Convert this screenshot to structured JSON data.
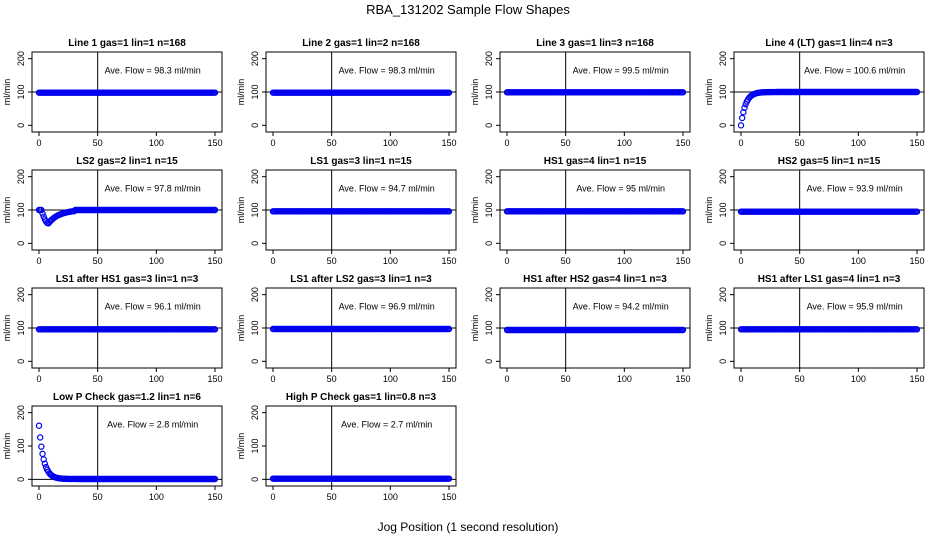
{
  "title": "RBA_131202  Sample Flow Shapes",
  "xlabel": "Jog Position (1 second resolution)",
  "colors": {
    "points": "#0000ee",
    "axes": "#000000"
  },
  "chart_data": [
    {
      "type": "scatter",
      "title": "Line 1 gas=1 lin=1 n=168",
      "ylabel": "ml/min",
      "annotation": "Ave. Flow = 98.3  ml/min",
      "xlim": [
        0,
        150
      ],
      "ylim": [
        -20,
        220
      ],
      "xticks": [
        0,
        50,
        100,
        150
      ],
      "yticks": [
        0,
        100,
        200
      ],
      "vline": 50,
      "hline": 100,
      "shape": "flat",
      "flat_level": 98,
      "n_points": 151
    },
    {
      "type": "scatter",
      "title": "Line 2 gas=1 lin=2 n=168",
      "ylabel": "ml/min",
      "annotation": "Ave. Flow = 98.3  ml/min",
      "xlim": [
        0,
        150
      ],
      "ylim": [
        -20,
        220
      ],
      "xticks": [
        0,
        50,
        100,
        150
      ],
      "yticks": [
        0,
        100,
        200
      ],
      "vline": 50,
      "hline": 100,
      "shape": "flat",
      "flat_level": 98,
      "n_points": 151
    },
    {
      "type": "scatter",
      "title": "Line 3 gas=1 lin=3 n=168",
      "ylabel": "ml/min",
      "annotation": "Ave. Flow = 99.5  ml/min",
      "xlim": [
        0,
        150
      ],
      "ylim": [
        -20,
        220
      ],
      "xticks": [
        0,
        50,
        100,
        150
      ],
      "yticks": [
        0,
        100,
        200
      ],
      "vline": 50,
      "hline": 100,
      "shape": "flat",
      "flat_level": 99,
      "n_points": 151
    },
    {
      "type": "scatter",
      "title": "Line 4 (LT) gas=1 lin=4 n=3",
      "ylabel": "ml/min",
      "annotation": "Ave. Flow = 100.6  ml/min",
      "xlim": [
        0,
        150
      ],
      "ylim": [
        -20,
        220
      ],
      "xticks": [
        0,
        50,
        100,
        150
      ],
      "yticks": [
        0,
        100,
        200
      ],
      "vline": 50,
      "hline": 100,
      "shape": "rise",
      "flat_level": 100,
      "n_points": 151
    },
    {
      "type": "scatter",
      "title": "LS2 gas=2 lin=1 n=15",
      "ylabel": "ml/min",
      "annotation": "Ave. Flow = 97.8  ml/min",
      "xlim": [
        0,
        150
      ],
      "ylim": [
        -20,
        220
      ],
      "xticks": [
        0,
        50,
        100,
        150
      ],
      "yticks": [
        0,
        100,
        200
      ],
      "vline": 50,
      "hline": 100,
      "shape": "dip",
      "flat_level": 100,
      "n_points": 151
    },
    {
      "type": "scatter",
      "title": "LS1 gas=3 lin=1 n=15",
      "ylabel": "ml/min",
      "annotation": "Ave. Flow = 94.7  ml/min",
      "xlim": [
        0,
        150
      ],
      "ylim": [
        -20,
        220
      ],
      "xticks": [
        0,
        50,
        100,
        150
      ],
      "yticks": [
        0,
        100,
        200
      ],
      "vline": 50,
      "hline": 100,
      "shape": "flat",
      "flat_level": 96,
      "n_points": 151
    },
    {
      "type": "scatter",
      "title": "HS1 gas=4 lin=1 n=15",
      "ylabel": "ml/min",
      "annotation": "Ave. Flow = 95  ml/min",
      "xlim": [
        0,
        150
      ],
      "ylim": [
        -20,
        220
      ],
      "xticks": [
        0,
        50,
        100,
        150
      ],
      "yticks": [
        0,
        100,
        200
      ],
      "vline": 50,
      "hline": 100,
      "shape": "flat",
      "flat_level": 96,
      "n_points": 151
    },
    {
      "type": "scatter",
      "title": "HS2 gas=5 lin=1 n=15",
      "ylabel": "ml/min",
      "annotation": "Ave. Flow = 93.9  ml/min",
      "xlim": [
        0,
        150
      ],
      "ylim": [
        -20,
        220
      ],
      "xticks": [
        0,
        50,
        100,
        150
      ],
      "yticks": [
        0,
        100,
        200
      ],
      "vline": 50,
      "hline": 100,
      "shape": "flat",
      "flat_level": 95,
      "n_points": 151
    },
    {
      "type": "scatter",
      "title": "LS1 after HS1 gas=3 lin=1 n=3",
      "ylabel": "ml/min",
      "annotation": "Ave. Flow = 96.1  ml/min",
      "xlim": [
        0,
        150
      ],
      "ylim": [
        -20,
        220
      ],
      "xticks": [
        0,
        50,
        100,
        150
      ],
      "yticks": [
        0,
        100,
        200
      ],
      "vline": 50,
      "hline": 100,
      "shape": "flat",
      "flat_level": 96,
      "n_points": 151
    },
    {
      "type": "scatter",
      "title": "LS1 after LS2 gas=3 lin=1 n=3",
      "ylabel": "ml/min",
      "annotation": "Ave. Flow = 96.9  ml/min",
      "xlim": [
        0,
        150
      ],
      "ylim": [
        -20,
        220
      ],
      "xticks": [
        0,
        50,
        100,
        150
      ],
      "yticks": [
        0,
        100,
        200
      ],
      "vline": 50,
      "hline": 100,
      "shape": "flat",
      "flat_level": 97,
      "n_points": 151
    },
    {
      "type": "scatter",
      "title": "HS1 after HS2 gas=4 lin=1 n=3",
      "ylabel": "ml/min",
      "annotation": "Ave. Flow = 94.2  ml/min",
      "xlim": [
        0,
        150
      ],
      "ylim": [
        -20,
        220
      ],
      "xticks": [
        0,
        50,
        100,
        150
      ],
      "yticks": [
        0,
        100,
        200
      ],
      "vline": 50,
      "hline": 100,
      "shape": "flat",
      "flat_level": 94,
      "n_points": 151
    },
    {
      "type": "scatter",
      "title": "HS1 after LS1 gas=4 lin=1 n=3",
      "ylabel": "ml/min",
      "annotation": "Ave. Flow = 95.9  ml/min",
      "xlim": [
        0,
        150
      ],
      "ylim": [
        -20,
        220
      ],
      "xticks": [
        0,
        50,
        100,
        150
      ],
      "yticks": [
        0,
        100,
        200
      ],
      "vline": 50,
      "hline": 100,
      "shape": "flat",
      "flat_level": 96,
      "n_points": 151
    },
    {
      "type": "scatter",
      "title": "Low P Check gas=1.2 lin=1 n=6",
      "ylabel": "ml/min",
      "annotation": "Ave. Flow = 2.8  ml/min",
      "xlim": [
        0,
        150
      ],
      "ylim": [
        -20,
        220
      ],
      "xticks": [
        0,
        50,
        100,
        150
      ],
      "yticks": [
        0,
        100,
        200
      ],
      "vline": 50,
      "hline": 0,
      "shape": "decay",
      "flat_level": 1,
      "n_points": 151
    },
    {
      "type": "scatter",
      "title": "High P Check gas=1 lin=0.8 n=3",
      "ylabel": "ml/min",
      "annotation": "Ave. Flow = 2.7  ml/min",
      "xlim": [
        0,
        150
      ],
      "ylim": [
        -20,
        220
      ],
      "xticks": [
        0,
        50,
        100,
        150
      ],
      "yticks": [
        0,
        100,
        200
      ],
      "vline": 50,
      "hline": 0,
      "shape": "flat",
      "flat_level": 2,
      "n_points": 151
    }
  ]
}
